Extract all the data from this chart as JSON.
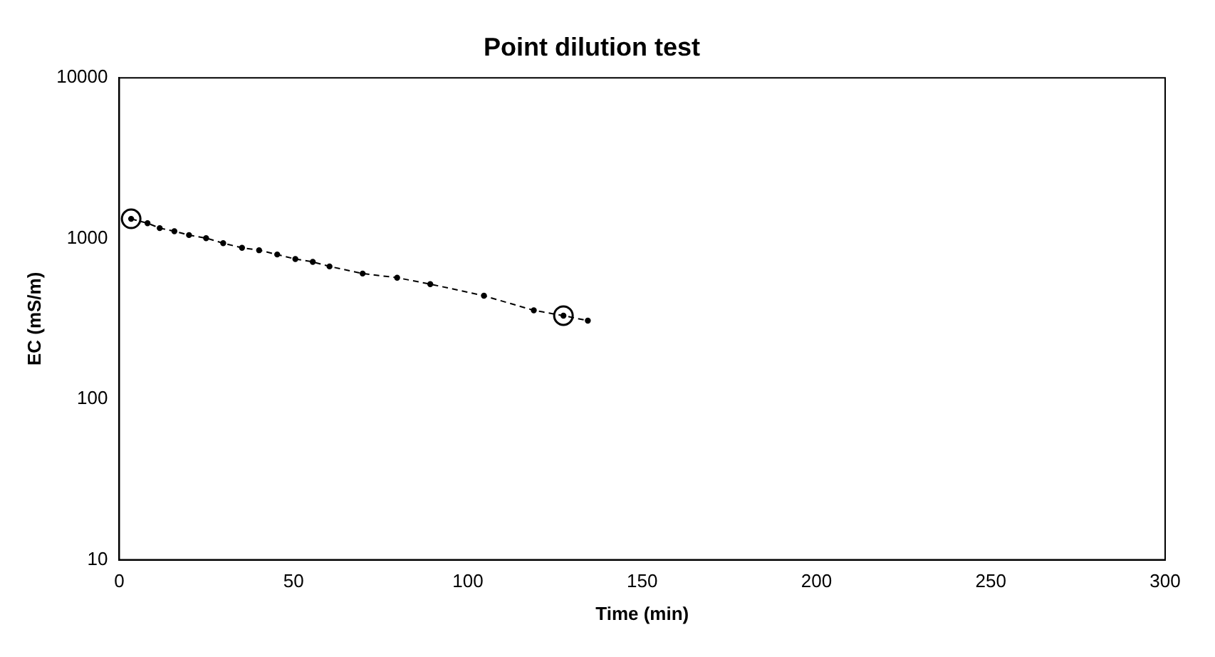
{
  "chart_data": {
    "type": "line",
    "title": "Point dilution test",
    "xlabel": "Time (min)",
    "ylabel": "EC (mS/m)",
    "log": "y",
    "grid": false,
    "legend": false,
    "xlim": [
      0,
      300
    ],
    "xticks": [
      0,
      50,
      100,
      150,
      200,
      250,
      300
    ],
    "ylim": [
      10,
      10000
    ],
    "yticks": [
      10,
      100,
      1000,
      10000
    ],
    "series": [
      {
        "color": "#000000",
        "marker": "circle",
        "line_style": "dashed",
        "x": [
          3.4,
          8.1,
          11.6,
          15.8,
          20,
          24.9,
          29.8,
          35.2,
          40.1,
          45.3,
          50.5,
          55.5,
          60.3,
          69.8,
          79.7,
          89.2,
          104.6,
          118.9,
          127.4,
          134.4
        ],
        "values": [
          1325,
          1245,
          1160,
          1110,
          1050,
          1005,
          935,
          875,
          845,
          795,
          745,
          715,
          670,
          605,
          570,
          520,
          440,
          357,
          331,
          308
        ]
      },
      {
        "type": "scatter",
        "color": "#000000",
        "marker": "circle",
        "x": [
          3.4,
          127.4
        ],
        "values": [
          1325,
          331
        ]
      }
    ]
  }
}
